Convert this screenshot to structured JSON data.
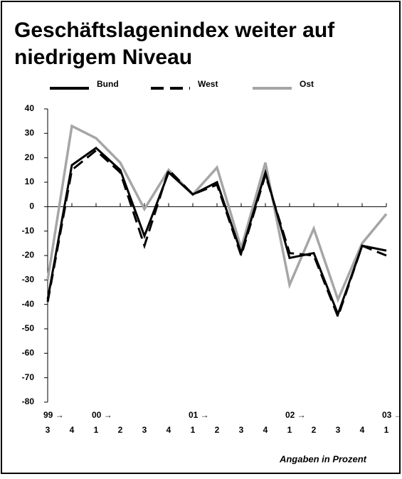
{
  "chart_data": {
    "type": "line",
    "title": [
      "Geschäftslagenindex weiter auf",
      "niedrigem Niveau"
    ],
    "categories": [
      "3",
      "4",
      "1",
      "2",
      "3",
      "4",
      "1",
      "2",
      "3",
      "4",
      "1",
      "2",
      "3",
      "4",
      "1"
    ],
    "year_labels": [
      "99 →",
      null,
      "00 →",
      null,
      null,
      null,
      "01 →",
      null,
      null,
      null,
      "02 →",
      null,
      null,
      null,
      "03 →"
    ],
    "series": [
      {
        "name": "Bund",
        "color": "#000000",
        "dash": false,
        "values": [
          -38,
          17,
          24,
          15,
          -12,
          14,
          5,
          10,
          -19,
          14,
          -21,
          -19,
          -44,
          -16,
          -18
        ]
      },
      {
        "name": "West",
        "color": "#000000",
        "dash": true,
        "values": [
          -39,
          15,
          23,
          14,
          -16,
          15,
          5,
          9,
          -20,
          13,
          -19,
          -20,
          -45,
          -16,
          -20
        ]
      },
      {
        "name": "Ost",
        "color": "#a6a6a6",
        "dash": false,
        "values": [
          -30,
          33,
          28,
          18,
          -1,
          15,
          5,
          16,
          -17,
          18,
          -32,
          -9,
          -38,
          -15,
          -3
        ]
      }
    ],
    "ylim": [
      -80,
      40
    ],
    "yticks": [
      40,
      30,
      20,
      10,
      0,
      -10,
      -20,
      -30,
      -40,
      -50,
      -60,
      -70,
      -80
    ],
    "note": "Angaben in Prozent"
  }
}
